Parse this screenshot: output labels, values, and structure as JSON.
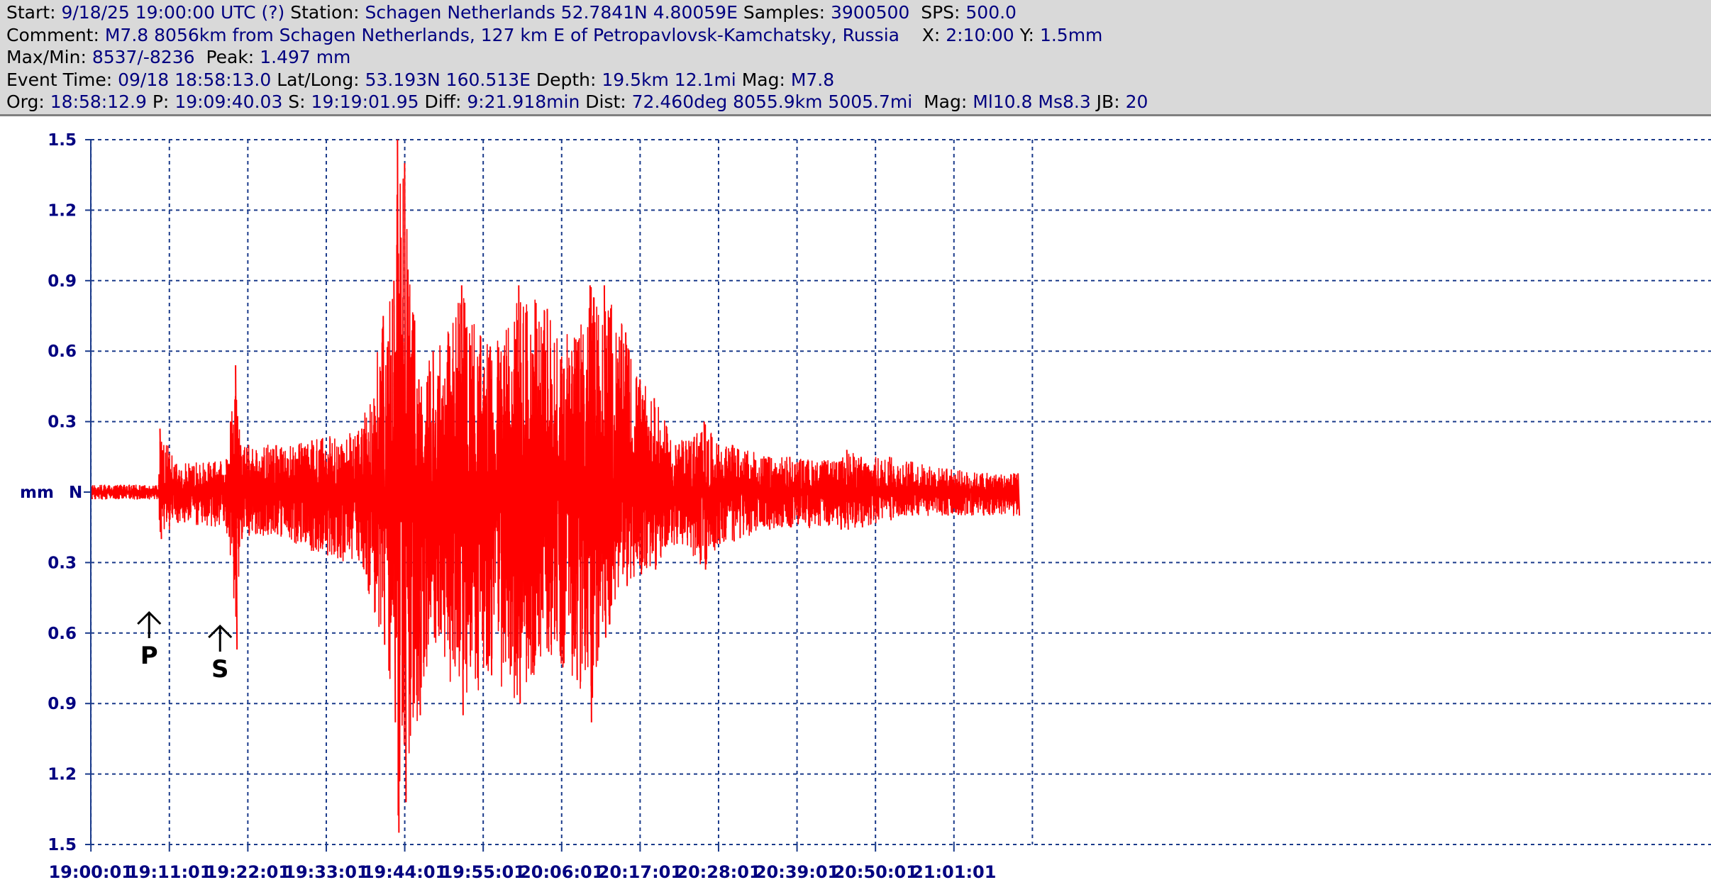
{
  "header": {
    "line1": [
      {
        "label": "Start: ",
        "value": "9/18/25 19:00:00 UTC (?)"
      },
      {
        "label": " Station: ",
        "value": "Schagen Netherlands 52.7841N 4.80059E"
      },
      {
        "label": " Samples: ",
        "value": "3900500"
      },
      {
        "label": "  SPS: ",
        "value": "500.0"
      }
    ],
    "line2": [
      {
        "label": "Comment: ",
        "value": "M7.8 8056km from Schagen Netherlands, 127 km E of Petropavlovsk-Kamchatsky, Russia"
      },
      {
        "label": "    X: ",
        "value": "2:10:00"
      },
      {
        "label": " Y: ",
        "value": "1.5mm"
      }
    ],
    "line3": [
      {
        "label": "Max/Min: ",
        "value": "8537/-8236"
      },
      {
        "label": "  Peak: ",
        "value": "1.497 mm"
      }
    ],
    "line4": [
      {
        "label": "Event Time: ",
        "value": "09/18 18:58:13.0"
      },
      {
        "label": " Lat/Long: ",
        "value": "53.193N 160.513E"
      },
      {
        "label": " Depth: ",
        "value": "19.5km 12.1mi"
      },
      {
        "label": " Mag: ",
        "value": "M7.8"
      }
    ],
    "line5": [
      {
        "label": "Org: ",
        "value": "18:58:12.9"
      },
      {
        "label": " P: ",
        "value": "19:09:40.03"
      },
      {
        "label": " S: ",
        "value": "19:19:01.95"
      },
      {
        "label": " Diff: ",
        "value": "9:21.918min"
      },
      {
        "label": " Dist: ",
        "value": "72.460deg 8055.9km 5005.7mi"
      },
      {
        "label": "  Mag: ",
        "value": "Ml10.8 Ms8.3"
      },
      {
        "label": " JB: ",
        "value": "20"
      }
    ]
  },
  "chart_data": {
    "type": "line",
    "y_unit_label": "mm",
    "y_center_label": "N",
    "ylim": [
      -1.5,
      1.5
    ],
    "y_ticks": [
      {
        "value": 1.5,
        "label": "1.5"
      },
      {
        "value": 1.2,
        "label": "1.2"
      },
      {
        "value": 0.9,
        "label": "0.9"
      },
      {
        "value": 0.6,
        "label": "0.6"
      },
      {
        "value": 0.3,
        "label": "0.3"
      },
      {
        "value": -0.3,
        "label": "0.3"
      },
      {
        "value": -0.6,
        "label": "0.6"
      },
      {
        "value": -0.9,
        "label": "0.9"
      },
      {
        "value": -1.2,
        "label": "1.2"
      },
      {
        "value": -1.5,
        "label": "1.5"
      }
    ],
    "x_range_minutes": [
      0,
      130
    ],
    "x_ticks": [
      {
        "minute": 0.0167,
        "label": "19:00:01"
      },
      {
        "minute": 11.0167,
        "label": "19:11:01"
      },
      {
        "minute": 22.0167,
        "label": "19:22:01"
      },
      {
        "minute": 33.0167,
        "label": "19:33:01"
      },
      {
        "minute": 44.0167,
        "label": "19:44:01"
      },
      {
        "minute": 55.0167,
        "label": "19:55:01"
      },
      {
        "minute": 66.0167,
        "label": "20:06:01"
      },
      {
        "minute": 77.0167,
        "label": "20:17:01"
      },
      {
        "minute": 88.0167,
        "label": "20:28:01"
      },
      {
        "minute": 99.0167,
        "label": "20:39:01"
      },
      {
        "minute": 110.0167,
        "label": "20:50:01"
      },
      {
        "minute": 121.0167,
        "label": "21:01:01"
      }
    ],
    "grid": true,
    "series_color": "#ff0000",
    "markers": [
      {
        "label": "P",
        "minute": 9.67
      },
      {
        "label": "S",
        "minute": 19.02
      }
    ],
    "envelope": {
      "minutes": [
        0,
        9.5,
        9.7,
        12,
        19,
        20.3,
        21,
        26,
        31,
        38,
        41,
        42.5,
        43,
        44,
        46,
        48,
        52,
        56,
        60,
        64,
        68,
        70,
        72,
        75,
        77,
        79,
        82,
        86,
        88,
        90,
        95,
        98,
        105,
        106,
        108,
        112,
        115,
        120,
        125,
        130
      ],
      "max_mm": [
        0.03,
        0.03,
        0.27,
        0.12,
        0.14,
        0.54,
        0.2,
        0.2,
        0.22,
        0.27,
        0.75,
        0.9,
        1.5,
        1.4,
        0.48,
        0.6,
        0.88,
        0.62,
        0.88,
        0.78,
        0.65,
        0.88,
        0.88,
        0.68,
        0.48,
        0.4,
        0.2,
        0.3,
        0.2,
        0.2,
        0.15,
        0.15,
        0.13,
        0.18,
        0.15,
        0.15,
        0.13,
        0.1,
        0.08,
        0.08
      ],
      "min_mm": [
        -0.03,
        -0.03,
        -0.2,
        -0.13,
        -0.15,
        -0.67,
        -0.2,
        -0.18,
        -0.25,
        -0.32,
        -0.65,
        -0.98,
        -1.45,
        -1.32,
        -0.95,
        -0.62,
        -0.95,
        -0.78,
        -0.9,
        -0.68,
        -0.8,
        -0.98,
        -0.62,
        -0.4,
        -0.35,
        -0.33,
        -0.22,
        -0.33,
        -0.22,
        -0.21,
        -0.16,
        -0.15,
        -0.16,
        -0.16,
        -0.15,
        -0.12,
        -0.1,
        -0.1,
        -0.1,
        -0.1
      ]
    }
  }
}
